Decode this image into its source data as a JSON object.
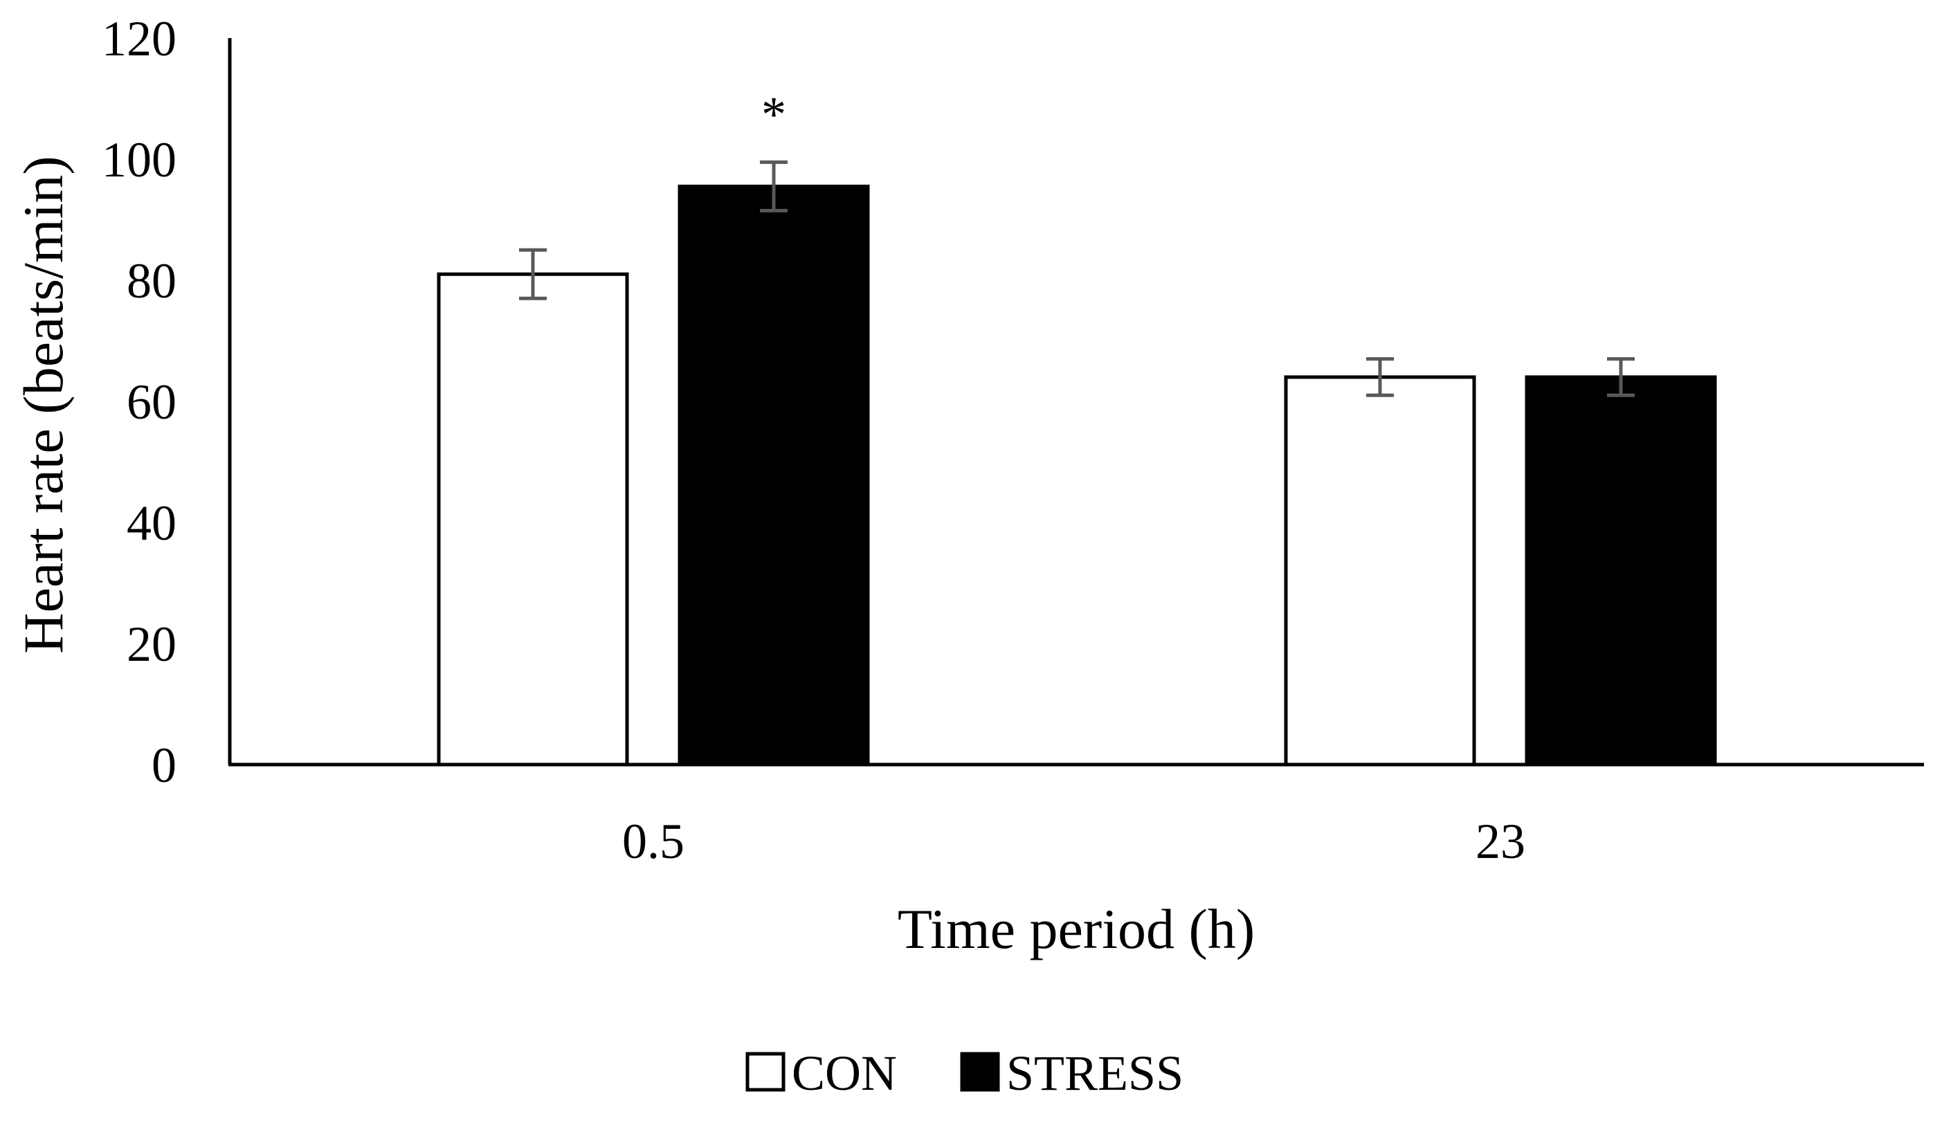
{
  "chart_data": {
    "type": "bar",
    "title": "",
    "xlabel": "Time period (h)",
    "ylabel": "Heart rate (beats/min)",
    "categories": [
      "0.5",
      "23"
    ],
    "series": [
      {
        "name": "CON",
        "values": [
          81,
          64
        ],
        "errors": [
          4,
          3
        ],
        "fill": "#ffffff",
        "stroke": "#000000"
      },
      {
        "name": "STRESS",
        "values": [
          95.5,
          64
        ],
        "errors": [
          4,
          3
        ],
        "fill": "#000000",
        "stroke": "#000000"
      }
    ],
    "ylim": [
      0,
      120
    ],
    "yticks": [
      "0",
      "20",
      "40",
      "60",
      "80",
      "100",
      "120"
    ],
    "annotations": [
      {
        "text": "*",
        "category": "0.5",
        "series": "STRESS"
      }
    ],
    "legend": {
      "position": "bottom",
      "items": [
        "CON",
        "STRESS"
      ]
    },
    "grid": false,
    "colors": {
      "axis": "#000000",
      "error_bar": "#595959"
    }
  }
}
